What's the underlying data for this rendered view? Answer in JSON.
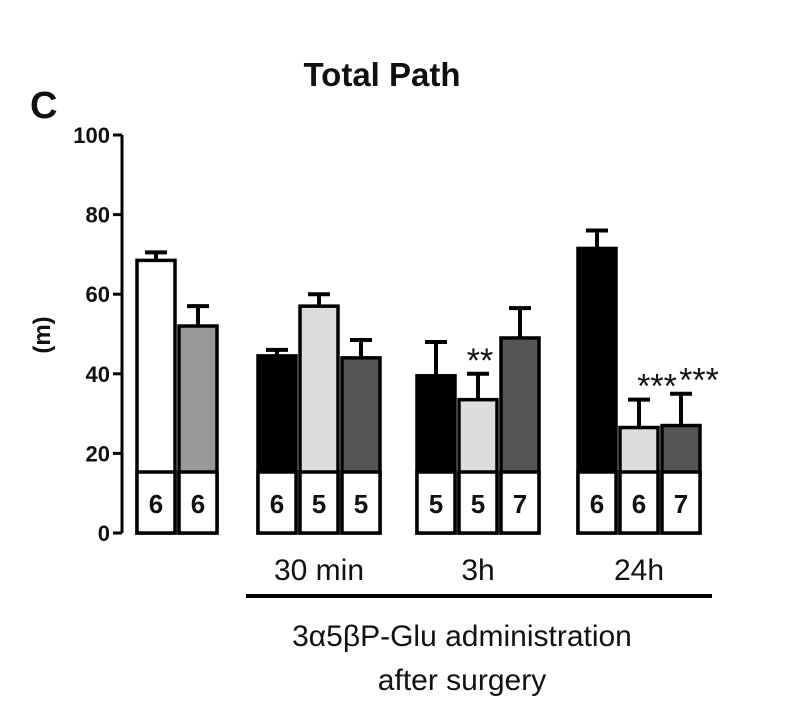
{
  "panel_letter": "C",
  "chart_data": {
    "type": "bar",
    "title": "Total Path",
    "ylabel": "(m)",
    "xlabel": "",
    "ylim": [
      0,
      100
    ],
    "yticks": [
      "0",
      "20",
      "40",
      "60",
      "80",
      "100"
    ],
    "grid": false,
    "groups": [
      {
        "label": "",
        "bars": [
          {
            "value": 68.5,
            "error": 2.0,
            "n": "6",
            "fill": "#ffffff",
            "sig": ""
          },
          {
            "value": 52.0,
            "error": 5.0,
            "n": "6",
            "fill": "#999999",
            "sig": ""
          }
        ]
      },
      {
        "label": "30 min",
        "bars": [
          {
            "value": 44.5,
            "error": 1.5,
            "n": "6",
            "fill": "#000000",
            "sig": ""
          },
          {
            "value": 57.0,
            "error": 3.0,
            "n": "5",
            "fill": "#dddddd",
            "sig": ""
          },
          {
            "value": 44.0,
            "error": 4.5,
            "n": "5",
            "fill": "#555555",
            "sig": ""
          }
        ]
      },
      {
        "label": "3h",
        "bars": [
          {
            "value": 39.5,
            "error": 8.5,
            "n": "5",
            "fill": "#000000",
            "sig": ""
          },
          {
            "value": 33.5,
            "error": 6.5,
            "n": "5",
            "fill": "#dddddd",
            "sig": "**"
          },
          {
            "value": 49.0,
            "error": 7.5,
            "n": "7",
            "fill": "#555555",
            "sig": ""
          }
        ]
      },
      {
        "label": "24h",
        "bars": [
          {
            "value": 71.5,
            "error": 4.5,
            "n": "6",
            "fill": "#000000",
            "sig": ""
          },
          {
            "value": 26.5,
            "error": 7.0,
            "n": "6",
            "fill": "#dddddd",
            "sig": "***"
          },
          {
            "value": 27.0,
            "error": 8.0,
            "n": "7",
            "fill": "#555555",
            "sig": "***"
          }
        ]
      }
    ],
    "footer_line1": "3α5βP-Glu administration",
    "footer_line2": "after surgery"
  }
}
